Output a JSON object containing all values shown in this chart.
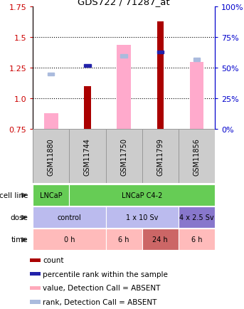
{
  "title": "GDS722 / 71287_at",
  "samples": [
    "GSM11880",
    "GSM11744",
    "GSM11750",
    "GSM11799",
    "GSM11856"
  ],
  "ylim": [
    0.75,
    1.75
  ],
  "y_ticks_left": [
    0.75,
    1.0,
    1.25,
    1.5,
    1.75
  ],
  "y_ticks_right_vals": [
    0,
    25,
    50,
    75,
    100
  ],
  "y_ticks_right_pos": [
    0.75,
    1.0,
    1.25,
    1.5,
    1.75
  ],
  "red_bars": {
    "GSM11880": null,
    "GSM11744": 1.1,
    "GSM11750": null,
    "GSM11799": 1.63,
    "GSM11856": null
  },
  "pink_bars": {
    "GSM11880": 0.88,
    "GSM11744": null,
    "GSM11750": 1.44,
    "GSM11799": null,
    "GSM11856": 1.3
  },
  "blue_squares": {
    "GSM11880": null,
    "GSM11744": 1.27,
    "GSM11750": null,
    "GSM11799": 1.38,
    "GSM11856": null
  },
  "light_blue_squares": {
    "GSM11880": 1.2,
    "GSM11744": null,
    "GSM11750": 1.35,
    "GSM11799": null,
    "GSM11856": 1.32
  },
  "cell_line_data": [
    {
      "label": "LNCaP",
      "start": 0,
      "end": 1,
      "color": "#66cc55"
    },
    {
      "label": "LNCaP C4-2",
      "start": 1,
      "end": 5,
      "color": "#66cc55"
    }
  ],
  "dose_data": [
    {
      "label": "control",
      "start": 0,
      "end": 2,
      "color": "#bbbbee"
    },
    {
      "label": "1 x 10 Sv",
      "start": 2,
      "end": 4,
      "color": "#bbbbee"
    },
    {
      "label": "4 x 2.5 Sv",
      "start": 4,
      "end": 5,
      "color": "#8877cc"
    }
  ],
  "time_data": [
    {
      "label": "0 h",
      "start": 0,
      "end": 2,
      "color": "#ffbbbb"
    },
    {
      "label": "6 h",
      "start": 2,
      "end": 3,
      "color": "#ffbbbb"
    },
    {
      "label": "24 h",
      "start": 3,
      "end": 4,
      "color": "#cc6666"
    },
    {
      "label": "6 h",
      "start": 4,
      "end": 5,
      "color": "#ffbbbb"
    }
  ],
  "legend_items": [
    {
      "color": "#aa0000",
      "label": "count"
    },
    {
      "color": "#2222aa",
      "label": "percentile rank within the sample"
    },
    {
      "color": "#ffaabb",
      "label": "value, Detection Call = ABSENT"
    },
    {
      "color": "#aabbdd",
      "label": "rank, Detection Call = ABSENT"
    }
  ],
  "red_color": "#aa0000",
  "pink_color": "#ffaacc",
  "blue_color": "#2222aa",
  "light_blue_color": "#aabbdd",
  "left_axis_color": "#cc0000",
  "right_axis_color": "#0000cc",
  "gsm_bg_color": "#cccccc",
  "gsm_border_color": "#999999"
}
